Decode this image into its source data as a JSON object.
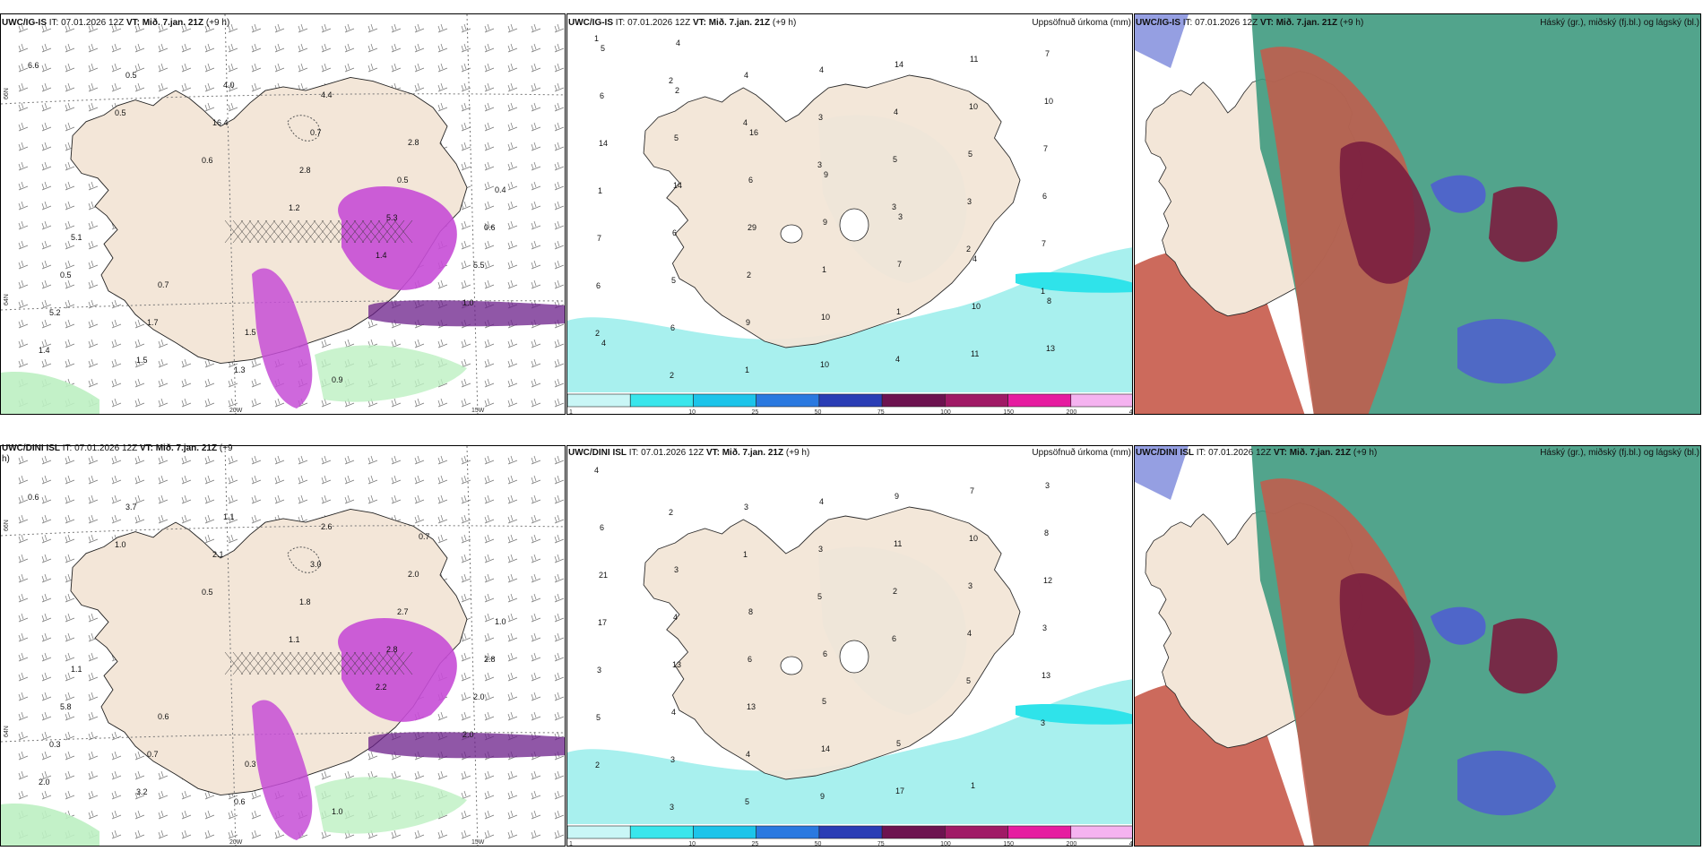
{
  "panels": [
    {
      "id": "ig-precip",
      "model": "UWC/IG-IS",
      "issue": " IT: 07.01.2026 12Z ",
      "valid_prefix": "VT:",
      "valid_bold": " Mið. 7.jan. 21Z",
      "lead": " (+9 h)",
      "right_title": "",
      "lon_labels": [
        "20W",
        "15W"
      ],
      "lat_labels": [
        "66N",
        "64N"
      ],
      "values": [
        "6.6",
        "0.5",
        "0.6",
        "1.2",
        "1.4",
        "1.0",
        "1.4",
        "0.5",
        "16.4",
        "2.8",
        "5.3",
        "5.5",
        "5.2",
        "1.5",
        "4.0",
        "0.7",
        "0.5",
        "0.6",
        "0.5",
        "1.7",
        "1.3",
        "4.4",
        "2.8",
        "0.4",
        "5.1",
        "0.7",
        "1.5",
        "0.9"
      ]
    },
    {
      "id": "ig-accum",
      "model": "UWC/IG-IS",
      "issue": " IT: 07.01.2026 12Z ",
      "valid_prefix": "VT:",
      "valid_bold": " Mið. 7.jan. 21Z",
      "lead": " (+9 h)",
      "right_title": "Uppsöfnuð úrkoma (mm)",
      "values": [
        "1",
        "2",
        "4",
        "3",
        "3",
        "2",
        "1",
        "2",
        "2",
        "4",
        "3",
        "5",
        "3",
        "7",
        "6",
        "6",
        "1",
        "4",
        "4",
        "5",
        "6",
        "7",
        "5",
        "9",
        "10",
        "14",
        "10",
        "7",
        "1",
        "6",
        "2",
        "10",
        "4",
        "11",
        "10",
        "14",
        "14",
        "29",
        "1",
        "1",
        "11",
        "7",
        "6",
        "5",
        "6",
        "9",
        "7",
        "10",
        "13",
        "5",
        "2",
        "16",
        "9",
        "3",
        "4",
        "8",
        "4",
        "4"
      ],
      "colorbar": [
        "1",
        "10",
        "25",
        "50",
        "75",
        "100",
        "150",
        "200",
        "400"
      ]
    },
    {
      "id": "ig-cloud",
      "model": "UWC/IG-IS",
      "issue": " IT: 07.01.2026 12Z ",
      "valid_prefix": "VT:",
      "valid_bold": " Mið. 7.jan. 21Z",
      "lead": " (+9 h)",
      "right_title": "Háský (gr.), miðský (fj.bl.) og lágský (bl.)"
    },
    {
      "id": "dini-precip",
      "model": "UWC/DINI ISL",
      "issue": " IT: 07.01.2026 12Z ",
      "valid_prefix": "VT:",
      "valid_bold": " Mið. 7.jan. 21Z",
      "lead": " (+9",
      "lead2": "h)",
      "right_title": "",
      "lon_labels": [
        "20W",
        "15W"
      ],
      "lat_labels": [
        "66N",
        "64N"
      ],
      "values": [
        "0.6",
        "1.0",
        "0.5",
        "1.1",
        "2.2",
        "2.0",
        "2.0",
        "3.7",
        "2.1",
        "1.8",
        "2.8",
        "2.0",
        "0.3",
        "3.2",
        "1.1",
        "3.0",
        "2.7",
        "2.8",
        "5.8",
        "0.7",
        "0.6",
        "2.6",
        "2.0",
        "1.0",
        "1.1",
        "0.6",
        "0.3",
        "1.0",
        "0.7"
      ]
    },
    {
      "id": "dini-accum",
      "model": "UWC/DINI ISL",
      "issue": " IT: 07.01.2026 12Z ",
      "valid_prefix": "VT:",
      "valid_bold": " Mið. 7.jan. 21Z",
      "lead": " (+9 h)",
      "right_title": "Uppsöfnuð úrkoma (mm)",
      "values": [
        "4",
        "2",
        "1",
        "5",
        "6",
        "5",
        "3",
        "2",
        "3",
        "3",
        "3",
        "2",
        "4",
        "13",
        "5",
        "3",
        "5",
        "4",
        "11",
        "3",
        "3",
        "3",
        "4",
        "4",
        "9",
        "9",
        "10",
        "12",
        "17",
        "13",
        "13",
        "14",
        "17",
        "7",
        "8",
        "21",
        "4",
        "6",
        "5",
        "5",
        "1",
        "3",
        "6",
        "3",
        "8",
        "6"
      ],
      "colorbar": [
        "1",
        "10",
        "25",
        "50",
        "75",
        "100",
        "150",
        "200",
        "400"
      ]
    },
    {
      "id": "dini-cloud",
      "model": "UWC/DINI ISL",
      "issue": " IT: 07.01.2026 12Z ",
      "valid_prefix": "VT:",
      "valid_bold": " Mið. 7.jan. 21Z",
      "lead": " (+9 h)",
      "right_title": "Háský (gr.), miðský (fj.bl.) og lágský (bl.)"
    }
  ],
  "colors": {
    "land": "#f3e6d8",
    "precip_light": "#a8f0ee",
    "precip_cyan": "#2fe3ea",
    "magenta": "#c64dd6",
    "purple_dark": "#6b1f8a",
    "green_light": "#bdf0c2",
    "green_dark": "#2b7d3a",
    "cloud_high": "#3f9a7f",
    "cloud_mid": "#7a1e3f",
    "cloud_low": "#4f5fcf",
    "cloud_red": "#c65a4a",
    "colorbar": [
      "#c9f6f6",
      "#39e6ec",
      "#1cc4ea",
      "#2a79e0",
      "#2a3db5",
      "#6d1350",
      "#a01a66",
      "#e61ca0",
      "#f5b3f0"
    ]
  }
}
